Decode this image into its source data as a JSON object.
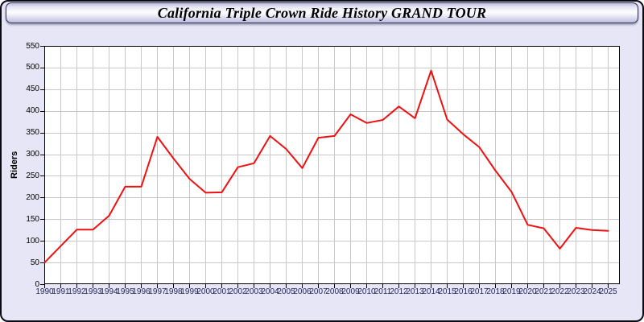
{
  "window": {
    "title": "California Triple Crown Ride History GRAND TOUR"
  },
  "colors": {
    "line": "#ee1111",
    "grid": "#c8c8c8",
    "plot_background": "#ffffff",
    "window_background": "#e6e6f6",
    "axis_frame": "#000000",
    "x_label_color": "#23235a",
    "titlebar_gradient_top": "#bdbddd",
    "titlebar_gradient_mid": "#fdfdff",
    "titlebar_gradient_bottom": "#bebede"
  },
  "chart_data": {
    "type": "line",
    "title": "California Triple Crown Ride History GRAND TOUR",
    "xlabel": "",
    "ylabel": "Riders",
    "ylim": [
      0,
      550
    ],
    "ytick_step": 50,
    "grid": true,
    "legend": "none",
    "x": [
      1990,
      1991,
      1992,
      1993,
      1994,
      1995,
      1996,
      1997,
      1998,
      1999,
      2000,
      2001,
      2002,
      2003,
      2004,
      2005,
      2006,
      2007,
      2008,
      2009,
      2010,
      2011,
      2012,
      2013,
      2014,
      2015,
      2016,
      2017,
      2018,
      2019,
      2020,
      2021,
      2022,
      2023,
      2024,
      2025
    ],
    "series": [
      {
        "name": "Riders",
        "color": "#ee1111",
        "values": [
          50,
          88,
          126,
          126,
          158,
          225,
          225,
          340,
          290,
          243,
          211,
          212,
          270,
          279,
          342,
          312,
          268,
          338,
          342,
          392,
          372,
          379,
          410,
          383,
          493,
          380,
          346,
          316,
          262,
          213,
          137,
          129,
          82,
          130,
          125,
          123
        ]
      }
    ]
  }
}
